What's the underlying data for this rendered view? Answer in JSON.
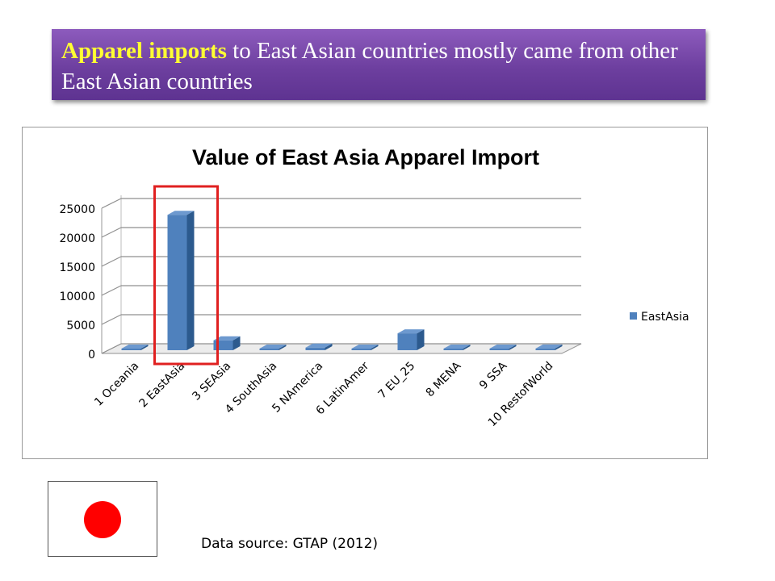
{
  "slide": {
    "headline_highlight": "Apparel imports",
    "headline_rest": " to East Asian countries mostly came from other East Asian countries",
    "source": "Data source: GTAP (2012)",
    "flag": "japan-flag"
  },
  "chart_data": {
    "type": "bar",
    "title": "Value of East Asia Apparel Import",
    "categories": [
      "1 Oceania",
      "2 EastAsia",
      "3 SEAsia",
      "4 SouthAsia",
      "5 NAmerica",
      "6 LatinAmer",
      "7 EU_25",
      "8 MENA",
      "9 SSA",
      "10 RestofWorld"
    ],
    "series": [
      {
        "name": "EastAsia",
        "color": "#4f81bd",
        "values": [
          120,
          23300,
          1700,
          200,
          450,
          60,
          2900,
          120,
          40,
          300
        ]
      }
    ],
    "y_ticks": [
      "0",
      "5000",
      "10000",
      "15000",
      "20000",
      "25000"
    ],
    "ylim": [
      0,
      25000
    ],
    "grid": true,
    "legend_position": "right",
    "highlighted_category": "2 EastAsia",
    "highlight_color": "#e02020"
  }
}
